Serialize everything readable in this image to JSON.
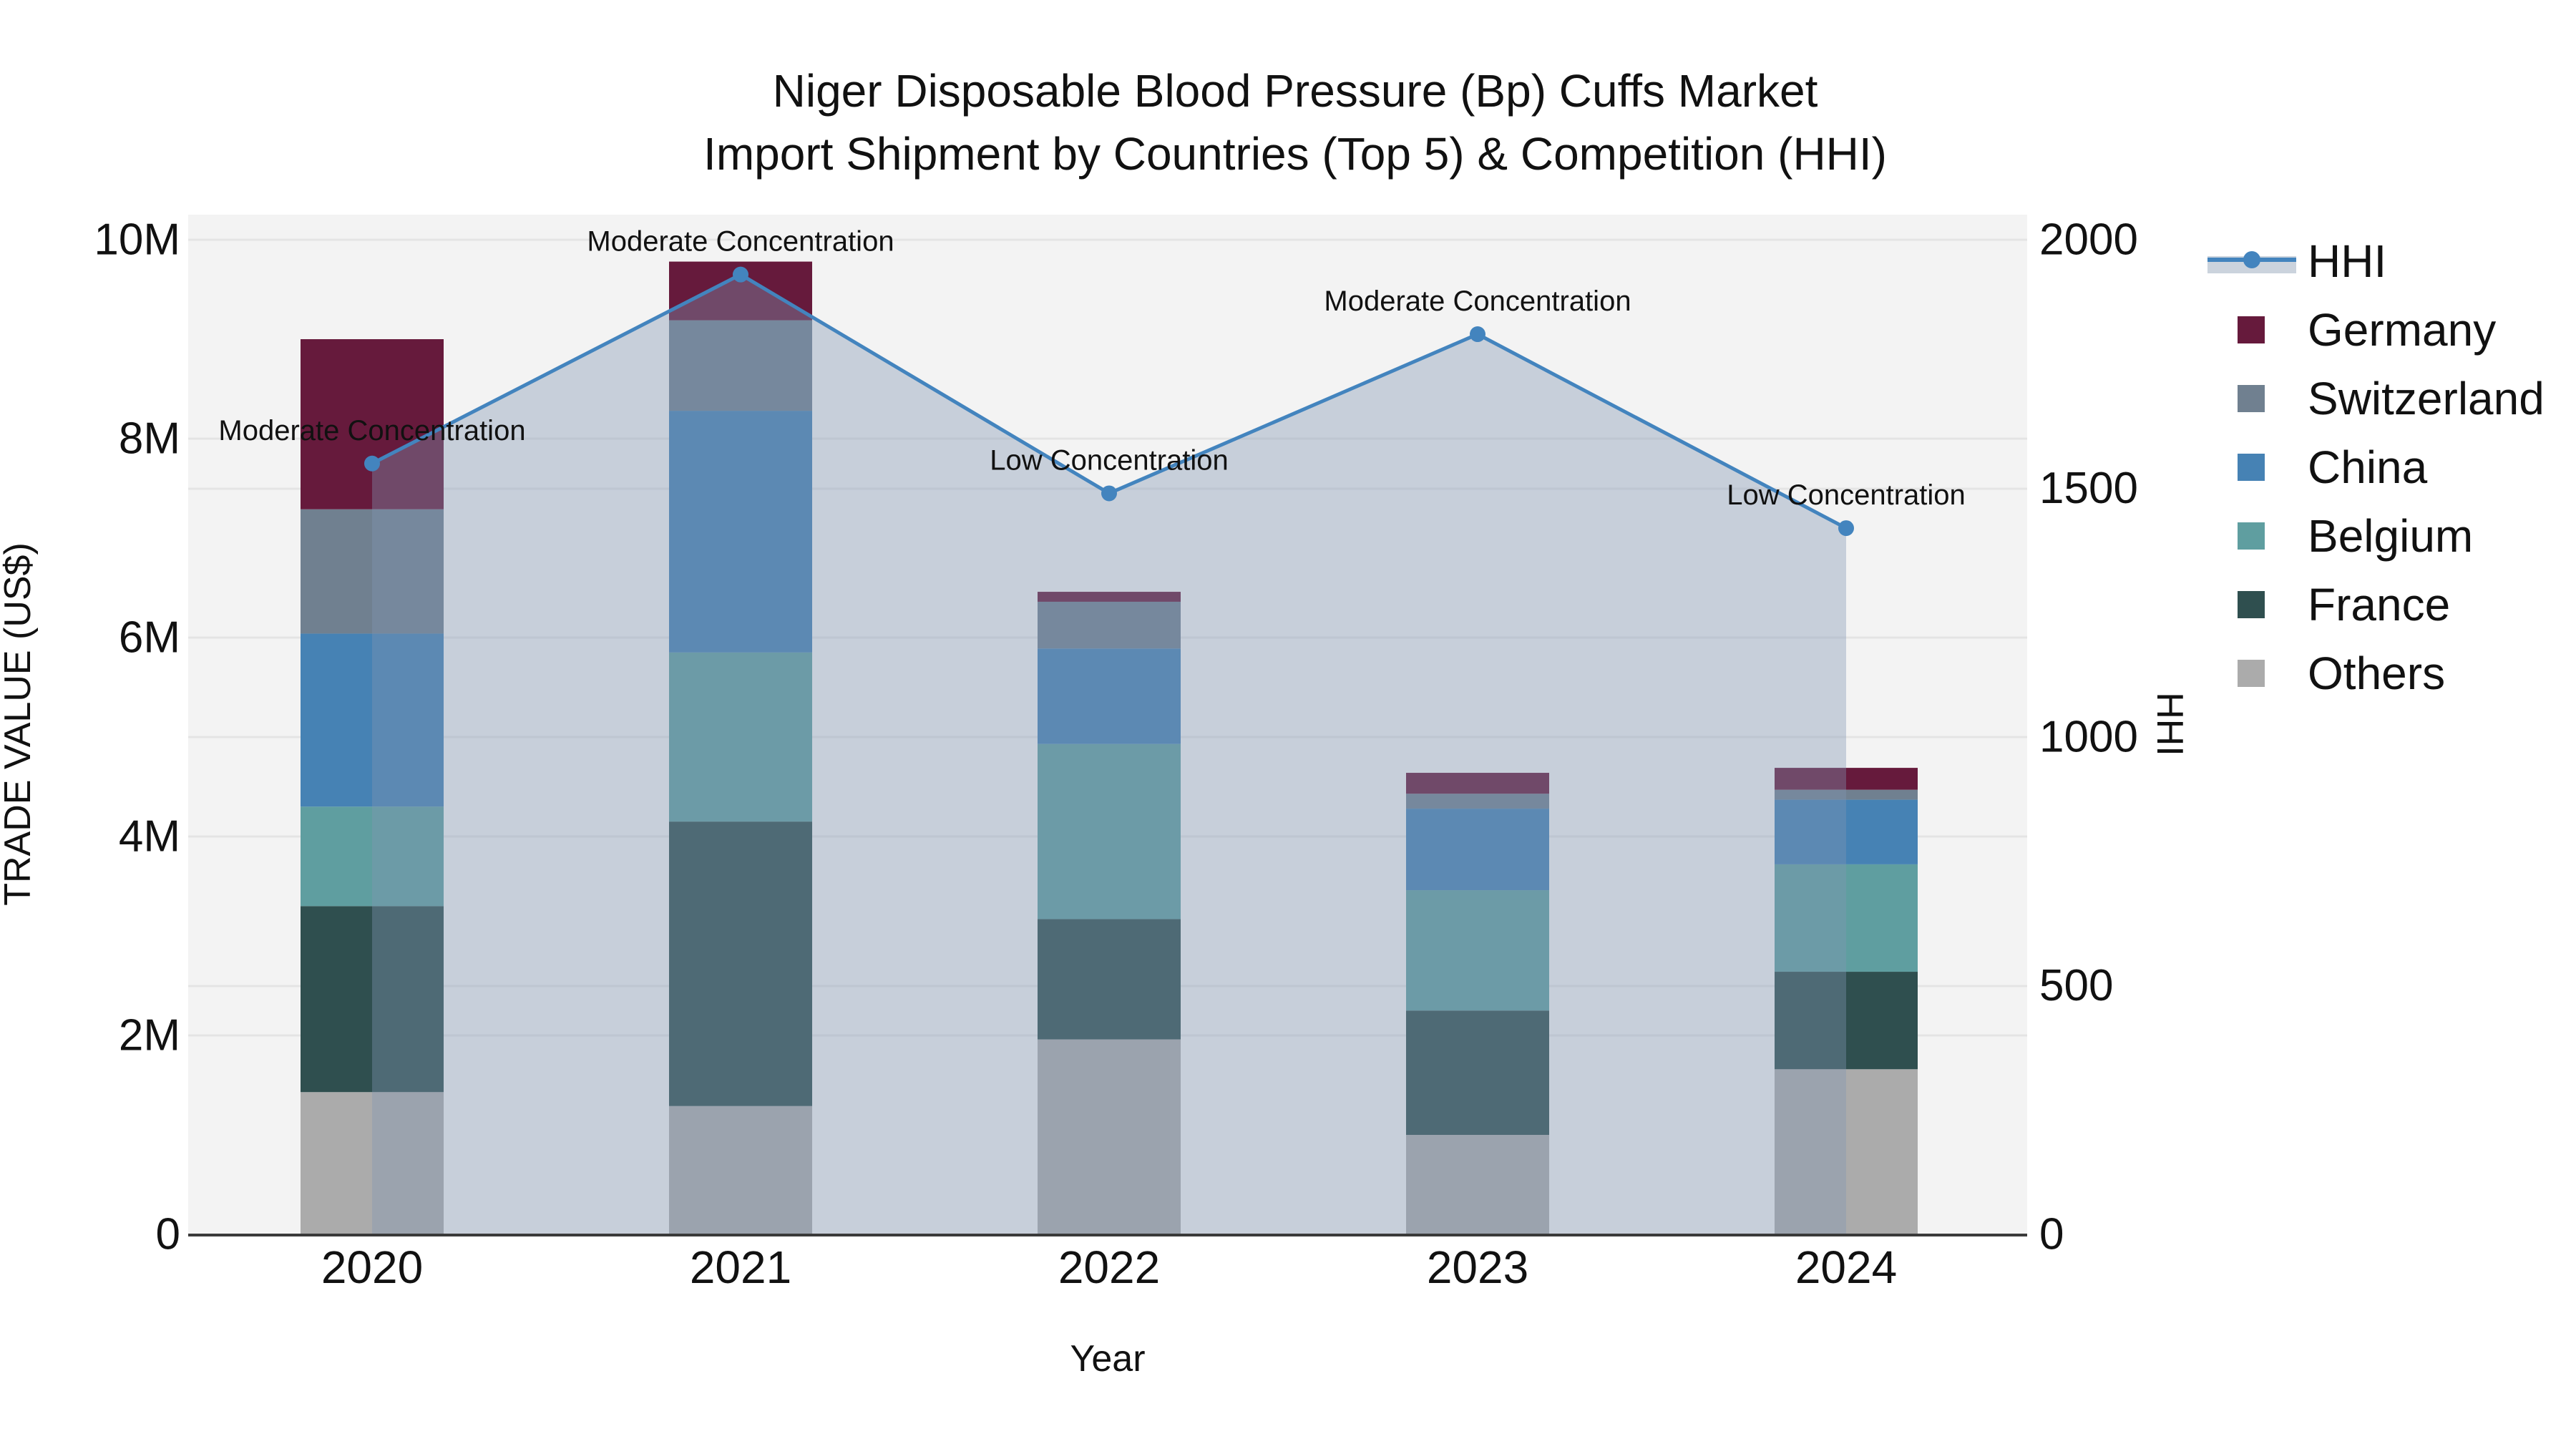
{
  "title": {
    "line1": "Niger Disposable Blood Pressure (Bp) Cuffs Market",
    "line2": "Import Shipment by Countries (Top 5) & Competition (HHI)"
  },
  "chart_data": {
    "type": "bar+line",
    "categories": [
      "2020",
      "2021",
      "2022",
      "2023",
      "2024"
    ],
    "value_unit": "million US$",
    "series": [
      {
        "name": "Others",
        "color": "#ABABAB",
        "values": [
          1.43,
          1.29,
          1.96,
          1.0,
          1.66
        ]
      },
      {
        "name": "France",
        "color": "#2F4F4F",
        "values": [
          1.87,
          2.86,
          1.21,
          1.25,
          0.98
        ]
      },
      {
        "name": "Belgium",
        "color": "#5F9EA0",
        "values": [
          1.0,
          1.7,
          1.76,
          1.21,
          1.08
        ]
      },
      {
        "name": "China",
        "color": "#4682B4",
        "values": [
          1.74,
          2.43,
          0.96,
          0.82,
          0.65
        ]
      },
      {
        "name": "Switzerland",
        "color": "#708090",
        "values": [
          1.25,
          0.91,
          0.47,
          0.15,
          0.1
        ]
      },
      {
        "name": "Germany",
        "color": "#661A3C",
        "values": [
          1.71,
          0.59,
          0.1,
          0.21,
          0.22
        ]
      }
    ],
    "totals": [
      9.0,
      9.78,
      6.46,
      4.64,
      4.69
    ],
    "hhi": {
      "name": "HHI",
      "values": [
        1550,
        1930,
        1490,
        1810,
        1420
      ],
      "line_color": "#4384BE",
      "fill_color": "rgba(128,150,178,0.38)"
    },
    "annotations": [
      "Moderate Concentration",
      "Moderate Concentration",
      "Low Concentration",
      "Moderate Concentration",
      "Low Concentration"
    ],
    "y_left": {
      "label": "TRADE VALUE (US$)",
      "ticks": [
        "0",
        "2M",
        "4M",
        "6M",
        "8M",
        "10M"
      ],
      "min": 0,
      "max": 10
    },
    "y_right": {
      "label": "HHI",
      "ticks": [
        "0",
        "500",
        "1000",
        "1500",
        "2000"
      ],
      "min": 0,
      "max": 2000
    },
    "x_label": "Year",
    "legend_order": [
      "HHI",
      "Germany",
      "Switzerland",
      "China",
      "Belgium",
      "France",
      "Others"
    ],
    "plot_bg": "#F3F3F3",
    "grid_color": "#E4E4E4",
    "axisline_color": "#3A3A3A"
  }
}
